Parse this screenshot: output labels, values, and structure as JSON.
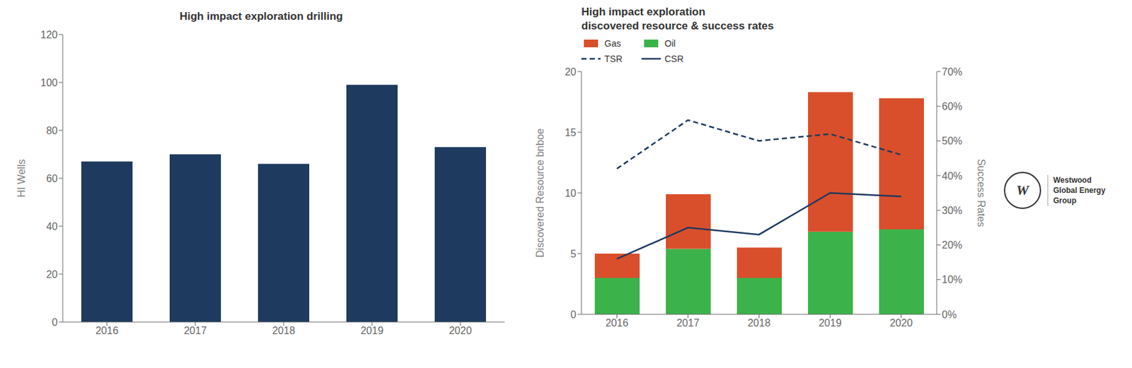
{
  "chart_data": [
    {
      "type": "bar",
      "title": "High impact exploration drilling",
      "y_label": "HI Wells",
      "categories": [
        "2016",
        "2017",
        "2018",
        "2019",
        "2020"
      ],
      "values": [
        67,
        70,
        66,
        99,
        73
      ],
      "color": "#1e3a5f",
      "ylim": [
        0,
        120
      ],
      "yticks": [
        0,
        20,
        40,
        60,
        80,
        100,
        120
      ],
      "grid": false
    },
    {
      "type": "bar",
      "title": "High impact exploration\ndiscovered resource & success rates",
      "y_label": "Discovered Resource bnboe",
      "y2_label": "Success Rates",
      "categories": [
        "2016",
        "2017",
        "2018",
        "2019",
        "2020"
      ],
      "series": [
        {
          "name": "Gas",
          "type": "bar",
          "color": "#d94f2b",
          "values": [
            2.0,
            4.5,
            2.5,
            11.5,
            10.8
          ]
        },
        {
          "name": "Oil",
          "type": "bar",
          "color": "#3cb34a",
          "values": [
            3.0,
            5.4,
            3.0,
            6.8,
            7.0
          ]
        },
        {
          "name": "TSR",
          "type": "line",
          "axis": "y2",
          "color": "#1e3a5f",
          "line_style": "dashed",
          "values": [
            0.42,
            0.56,
            0.5,
            0.52,
            0.46
          ]
        },
        {
          "name": "CSR",
          "type": "line",
          "axis": "y2",
          "color": "#1e3a5f",
          "line_style": "solid",
          "values": [
            0.16,
            0.25,
            0.23,
            0.35,
            0.34
          ]
        }
      ],
      "stacked": true,
      "ylim": [
        0,
        20
      ],
      "yticks": [
        0,
        5,
        10,
        15,
        20
      ],
      "y2lim": [
        0,
        0.7
      ],
      "y2ticks": [
        {
          "value": 0,
          "label": "0%"
        },
        {
          "value": 0.1,
          "label": "10%"
        },
        {
          "value": 0.2,
          "label": "20%"
        },
        {
          "value": 0.3,
          "label": "30%"
        },
        {
          "value": 0.4,
          "label": "40%"
        },
        {
          "value": 0.5,
          "label": "50%"
        },
        {
          "value": 0.6,
          "label": "60%"
        },
        {
          "value": 0.7,
          "label": "70%"
        }
      ],
      "legend": "upper left",
      "grid": false,
      "annotations": [
        "W",
        "Westwood",
        "Global Energy",
        "Group"
      ]
    }
  ]
}
